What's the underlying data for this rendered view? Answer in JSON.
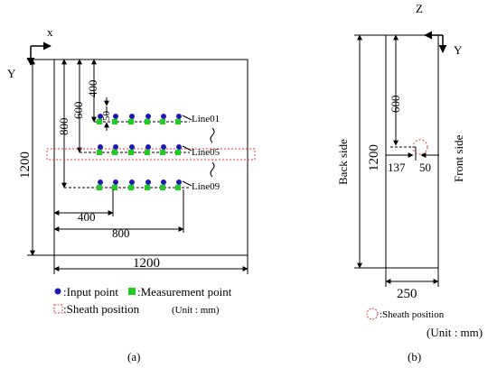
{
  "panel_a": {
    "axis_x": "x",
    "axis_y": "Y",
    "dim_400": "400",
    "dim_600": "600",
    "dim_800": "800",
    "dim_50": "50",
    "dim_1200_v": "1200",
    "dim_1200_h": "1200",
    "dim_400_h": "400",
    "dim_800_h": "800",
    "line_labels": [
      "Line01",
      "Line05",
      "Line09"
    ],
    "legend": {
      "input_point": ":Input point",
      "measurement_point": ":Measurement point",
      "sheath_position": ":Sheath position",
      "unit": "(Unit : mm)"
    },
    "caption": "(a)",
    "colors": {
      "input": "#1a1ab3",
      "measurement": "#22cc22",
      "sheath": "#e23b3b"
    }
  },
  "panel_b": {
    "axis_z": "Z",
    "axis_y": "Y",
    "dim_600": "600",
    "dim_1200": "1200",
    "dim_137": "137",
    "dim_50": "50",
    "dim_250": "250",
    "back_side": "Back side",
    "front_side": "Front side",
    "legend_sheath": ":Sheath position",
    "unit": "(Unit : mm)",
    "caption": "(b)"
  }
}
